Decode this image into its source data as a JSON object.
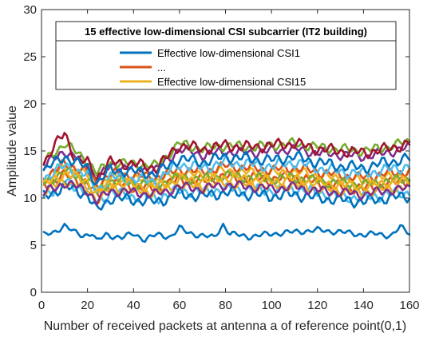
{
  "chart_data": {
    "type": "line",
    "title": "",
    "xlabel": "Number of received packets at antenna a of reference point(0,1)",
    "ylabel": "Amplitude value",
    "xlim": [
      0,
      160
    ],
    "ylim": [
      0,
      30
    ],
    "xticks": [
      0,
      20,
      40,
      60,
      80,
      100,
      120,
      140,
      160
    ],
    "yticks": [
      0,
      5,
      10,
      15,
      20,
      25,
      30
    ],
    "grid": false,
    "legend": {
      "title": "15 effective low-dimensional CSI subcarrier (IT2 building)",
      "placement": "top-center",
      "entries": [
        {
          "label": "Effective low-dimensional CSI1",
          "color": "#0072BD"
        },
        {
          "label": "...",
          "color": "#D95319"
        },
        {
          "label": "Effective low-dimensional CSI15",
          "color": "#EDB120"
        }
      ]
    },
    "series": [
      {
        "name": "Effective low-dimensional CSI1",
        "color": "#0072BD",
        "base": 6.2,
        "amp": 0.35,
        "phase": 0.3,
        "keypoints": [
          [
            0,
            6.0
          ],
          [
            5,
            6.3
          ],
          [
            10,
            7.1
          ],
          [
            14,
            6.4
          ],
          [
            18,
            6.0
          ],
          [
            22,
            6.3
          ],
          [
            24,
            5.4
          ],
          [
            28,
            6.1
          ],
          [
            35,
            5.8
          ],
          [
            40,
            6.2
          ],
          [
            45,
            5.6
          ],
          [
            50,
            6.1
          ],
          [
            56,
            5.9
          ],
          [
            60,
            6.8
          ],
          [
            64,
            6.3
          ],
          [
            70,
            6.0
          ],
          [
            75,
            5.8
          ],
          [
            79,
            7.2
          ],
          [
            82,
            6.2
          ],
          [
            90,
            5.9
          ],
          [
            100,
            6.2
          ],
          [
            110,
            6.4
          ],
          [
            120,
            6.6
          ],
          [
            130,
            6.4
          ],
          [
            140,
            6.1
          ],
          [
            146,
            6.2
          ],
          [
            152,
            6.0
          ],
          [
            156,
            6.9
          ],
          [
            160,
            6.3
          ]
        ]
      },
      {
        "name": "",
        "color": "#D95319",
        "base": 11.5,
        "amp": 0.7,
        "phase": 1.1,
        "keypoints": [
          [
            0,
            11.2
          ],
          [
            10,
            12.4
          ],
          [
            20,
            11.6
          ],
          [
            24,
            10.2
          ],
          [
            30,
            11.5
          ],
          [
            40,
            11.2
          ],
          [
            50,
            11.0
          ],
          [
            60,
            12.0
          ],
          [
            70,
            11.8
          ],
          [
            80,
            12.3
          ],
          [
            90,
            12.1
          ],
          [
            100,
            12.0
          ],
          [
            110,
            12.2
          ],
          [
            120,
            11.6
          ],
          [
            130,
            11.2
          ],
          [
            140,
            11.0
          ],
          [
            150,
            11.5
          ],
          [
            160,
            12.0
          ]
        ]
      },
      {
        "name": "",
        "color": "#EDB120",
        "base": 12.3,
        "amp": 0.6,
        "phase": 2.0,
        "keypoints": [
          [
            0,
            11.9
          ],
          [
            10,
            13.2
          ],
          [
            20,
            12.4
          ],
          [
            24,
            11.0
          ],
          [
            30,
            12.1
          ],
          [
            40,
            12.0
          ],
          [
            50,
            11.8
          ],
          [
            60,
            12.6
          ],
          [
            70,
            12.4
          ],
          [
            80,
            12.9
          ],
          [
            90,
            12.7
          ],
          [
            100,
            12.6
          ],
          [
            110,
            12.8
          ],
          [
            120,
            12.4
          ],
          [
            130,
            12.0
          ],
          [
            140,
            11.8
          ],
          [
            150,
            12.2
          ],
          [
            160,
            12.6
          ]
        ]
      },
      {
        "name": "",
        "color": "#7E2F8E",
        "base": 13.6,
        "amp": 0.6,
        "phase": 2.6,
        "keypoints": [
          [
            0,
            13.2
          ],
          [
            10,
            15.0
          ],
          [
            20,
            13.6
          ],
          [
            24,
            12.0
          ],
          [
            30,
            13.4
          ],
          [
            40,
            13.2
          ],
          [
            50,
            13.0
          ],
          [
            60,
            15.2
          ],
          [
            70,
            14.6
          ],
          [
            80,
            14.9
          ],
          [
            90,
            14.8
          ],
          [
            100,
            15.0
          ],
          [
            110,
            15.2
          ],
          [
            120,
            14.8
          ],
          [
            130,
            14.6
          ],
          [
            140,
            14.4
          ],
          [
            150,
            14.8
          ],
          [
            160,
            15.4
          ]
        ]
      },
      {
        "name": "",
        "color": "#77AC30",
        "base": 14.0,
        "amp": 0.6,
        "phase": 3.3,
        "keypoints": [
          [
            0,
            13.6
          ],
          [
            10,
            15.8
          ],
          [
            20,
            14.0
          ],
          [
            24,
            12.6
          ],
          [
            30,
            13.8
          ],
          [
            40,
            13.6
          ],
          [
            50,
            13.4
          ],
          [
            60,
            15.8
          ],
          [
            70,
            15.2
          ],
          [
            80,
            15.6
          ],
          [
            90,
            15.4
          ],
          [
            100,
            15.6
          ],
          [
            110,
            15.8
          ],
          [
            120,
            15.4
          ],
          [
            130,
            15.2
          ],
          [
            140,
            15.0
          ],
          [
            150,
            15.4
          ],
          [
            160,
            16.0
          ]
        ]
      },
      {
        "name": "",
        "color": "#4DBEEE",
        "base": 10.7,
        "amp": 0.7,
        "phase": 4.1,
        "keypoints": [
          [
            0,
            10.2
          ],
          [
            10,
            11.6
          ],
          [
            20,
            10.8
          ],
          [
            24,
            9.4
          ],
          [
            30,
            10.6
          ],
          [
            40,
            10.2
          ],
          [
            50,
            10.0
          ],
          [
            60,
            10.8
          ],
          [
            70,
            10.6
          ],
          [
            80,
            11.0
          ],
          [
            90,
            10.9
          ],
          [
            100,
            10.8
          ],
          [
            110,
            11.0
          ],
          [
            120,
            10.6
          ],
          [
            130,
            10.2
          ],
          [
            140,
            10.0
          ],
          [
            150,
            10.4
          ],
          [
            160,
            10.6
          ]
        ]
      },
      {
        "name": "",
        "color": "#A2142F",
        "base": 13.9,
        "amp": 0.7,
        "phase": 5.0,
        "keypoints": [
          [
            0,
            13.4
          ],
          [
            10,
            17.0
          ],
          [
            15,
            14.0
          ],
          [
            20,
            13.8
          ],
          [
            24,
            12.2
          ],
          [
            30,
            13.8
          ],
          [
            40,
            13.6
          ],
          [
            50,
            13.2
          ],
          [
            60,
            15.6
          ],
          [
            70,
            15.2
          ],
          [
            80,
            15.6
          ],
          [
            90,
            15.4
          ],
          [
            100,
            15.6
          ],
          [
            110,
            15.8
          ],
          [
            120,
            15.2
          ],
          [
            130,
            15.0
          ],
          [
            140,
            14.8
          ],
          [
            150,
            15.2
          ],
          [
            160,
            15.8
          ]
        ]
      },
      {
        "name": "",
        "color": "#0072BD",
        "base": 10.2,
        "amp": 0.7,
        "phase": 0.7,
        "keypoints": [
          [
            0,
            10.0
          ],
          [
            10,
            11.2
          ],
          [
            20,
            10.4
          ],
          [
            24,
            8.6
          ],
          [
            30,
            10.0
          ],
          [
            40,
            9.8
          ],
          [
            50,
            9.6
          ],
          [
            60,
            10.4
          ],
          [
            70,
            10.2
          ],
          [
            80,
            10.6
          ],
          [
            90,
            10.4
          ],
          [
            100,
            10.2
          ],
          [
            110,
            10.4
          ],
          [
            120,
            10.0
          ],
          [
            130,
            9.8
          ],
          [
            140,
            9.6
          ],
          [
            150,
            10.0
          ],
          [
            160,
            10.2
          ]
        ]
      },
      {
        "name": "",
        "color": "#D95319",
        "base": 12.6,
        "amp": 0.6,
        "phase": 1.6,
        "keypoints": [
          [
            0,
            12.0
          ],
          [
            10,
            13.6
          ],
          [
            20,
            12.8
          ],
          [
            24,
            11.4
          ],
          [
            30,
            12.6
          ],
          [
            40,
            12.4
          ],
          [
            50,
            12.2
          ],
          [
            60,
            13.0
          ],
          [
            70,
            12.8
          ],
          [
            80,
            13.4
          ],
          [
            90,
            13.2
          ],
          [
            100,
            13.0
          ],
          [
            110,
            13.2
          ],
          [
            120,
            12.8
          ],
          [
            130,
            12.4
          ],
          [
            140,
            12.2
          ],
          [
            150,
            12.6
          ],
          [
            160,
            12.8
          ]
        ]
      },
      {
        "name": "",
        "color": "#EDB120",
        "base": 11.0,
        "amp": 0.6,
        "phase": 2.3,
        "keypoints": [
          [
            0,
            10.6
          ],
          [
            10,
            11.8
          ],
          [
            20,
            11.0
          ],
          [
            24,
            9.8
          ],
          [
            30,
            11.0
          ],
          [
            40,
            10.8
          ],
          [
            50,
            10.6
          ],
          [
            60,
            11.4
          ],
          [
            70,
            11.2
          ],
          [
            80,
            11.6
          ],
          [
            90,
            11.4
          ],
          [
            100,
            11.2
          ],
          [
            110,
            11.4
          ],
          [
            120,
            11.0
          ],
          [
            130,
            10.8
          ],
          [
            140,
            10.6
          ],
          [
            150,
            11.0
          ],
          [
            160,
            11.2
          ]
        ]
      },
      {
        "name": "",
        "color": "#7E2F8E",
        "base": 10.9,
        "amp": 0.6,
        "phase": 3.0,
        "keypoints": [
          [
            0,
            10.4
          ],
          [
            10,
            11.6
          ],
          [
            20,
            10.8
          ],
          [
            24,
            9.6
          ],
          [
            30,
            10.8
          ],
          [
            40,
            10.6
          ],
          [
            50,
            10.4
          ],
          [
            60,
            11.2
          ],
          [
            70,
            11.0
          ],
          [
            80,
            11.4
          ],
          [
            90,
            11.2
          ],
          [
            100,
            11.0
          ],
          [
            110,
            11.2
          ],
          [
            120,
            10.8
          ],
          [
            130,
            10.6
          ],
          [
            140,
            10.4
          ],
          [
            150,
            10.8
          ],
          [
            160,
            11.0
          ]
        ]
      },
      {
        "name": "",
        "color": "#77AC30",
        "base": 11.9,
        "amp": 0.6,
        "phase": 3.8,
        "keypoints": [
          [
            0,
            11.4
          ],
          [
            10,
            12.8
          ],
          [
            20,
            12.0
          ],
          [
            24,
            10.6
          ],
          [
            30,
            11.8
          ],
          [
            40,
            11.6
          ],
          [
            50,
            11.4
          ],
          [
            60,
            12.2
          ],
          [
            70,
            12.0
          ],
          [
            80,
            12.4
          ],
          [
            90,
            12.2
          ],
          [
            100,
            12.0
          ],
          [
            110,
            12.2
          ],
          [
            120,
            11.8
          ],
          [
            130,
            11.6
          ],
          [
            140,
            11.4
          ],
          [
            150,
            11.8
          ],
          [
            160,
            12.0
          ]
        ]
      },
      {
        "name": "",
        "color": "#4DBEEE",
        "base": 12.2,
        "amp": 0.7,
        "phase": 4.6,
        "keypoints": [
          [
            0,
            12.0
          ],
          [
            10,
            13.4
          ],
          [
            20,
            12.4
          ],
          [
            24,
            10.8
          ],
          [
            30,
            12.2
          ],
          [
            40,
            12.0
          ],
          [
            50,
            11.8
          ],
          [
            60,
            13.6
          ],
          [
            70,
            13.2
          ],
          [
            80,
            13.8
          ],
          [
            90,
            13.6
          ],
          [
            100,
            13.4
          ],
          [
            110,
            13.8
          ],
          [
            120,
            13.2
          ],
          [
            130,
            12.8
          ],
          [
            140,
            12.6
          ],
          [
            150,
            13.0
          ],
          [
            160,
            13.4
          ]
        ]
      },
      {
        "name": "",
        "color": "#0072BD",
        "base": 13.0,
        "amp": 0.7,
        "phase": 5.4,
        "keypoints": [
          [
            0,
            12.8
          ],
          [
            10,
            14.4
          ],
          [
            20,
            13.2
          ],
          [
            24,
            11.6
          ],
          [
            30,
            13.0
          ],
          [
            40,
            12.8
          ],
          [
            50,
            12.6
          ],
          [
            60,
            14.2
          ],
          [
            70,
            13.8
          ],
          [
            80,
            14.4
          ],
          [
            90,
            14.2
          ],
          [
            100,
            14.0
          ],
          [
            110,
            14.4
          ],
          [
            120,
            13.8
          ],
          [
            130,
            13.4
          ],
          [
            140,
            13.2
          ],
          [
            150,
            13.8
          ],
          [
            160,
            14.2
          ]
        ]
      },
      {
        "name": "Effective low-dimensional CSI15",
        "color": "#EDB120",
        "base": 11.6,
        "amp": 0.6,
        "phase": 6.0,
        "keypoints": [
          [
            0,
            11.2
          ],
          [
            10,
            12.6
          ],
          [
            20,
            11.8
          ],
          [
            24,
            10.4
          ],
          [
            30,
            11.6
          ],
          [
            40,
            11.4
          ],
          [
            50,
            11.2
          ],
          [
            60,
            12.0
          ],
          [
            70,
            11.8
          ],
          [
            80,
            12.2
          ],
          [
            90,
            12.0
          ],
          [
            100,
            11.8
          ],
          [
            110,
            12.0
          ],
          [
            120,
            11.6
          ],
          [
            130,
            11.4
          ],
          [
            140,
            11.2
          ],
          [
            150,
            11.6
          ],
          [
            160,
            11.8
          ]
        ]
      }
    ]
  }
}
